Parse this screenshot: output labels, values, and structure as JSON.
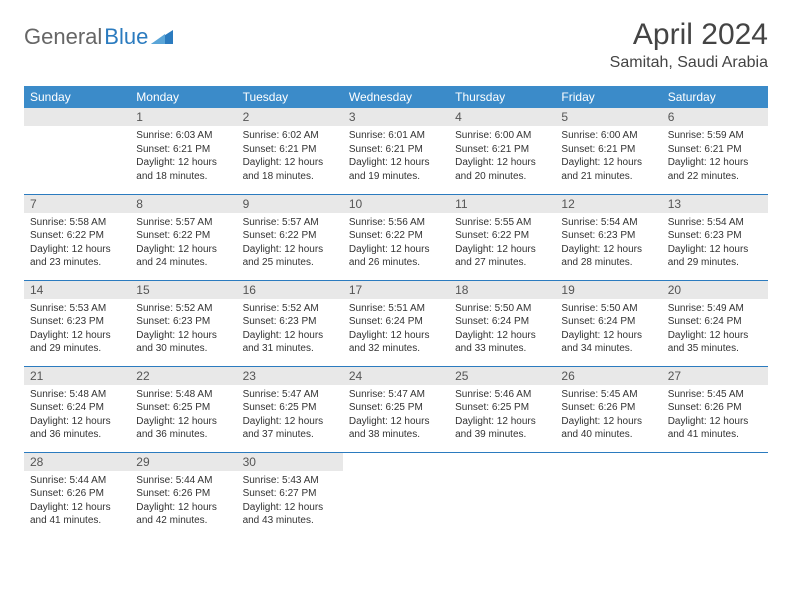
{
  "logo": {
    "text1": "General",
    "text2": "Blue",
    "triangle_color": "#2b7bbf"
  },
  "title": "April 2024",
  "location": "Samitah, Saudi Arabia",
  "header_bg": "#3b8bc9",
  "daynum_bg": "#e8e8e8",
  "border_color": "#2b7bbf",
  "weekdays": [
    "Sunday",
    "Monday",
    "Tuesday",
    "Wednesday",
    "Thursday",
    "Friday",
    "Saturday"
  ],
  "rows": [
    [
      null,
      {
        "n": "1",
        "sr": "6:03 AM",
        "ss": "6:21 PM",
        "dl": "12 hours and 18 minutes."
      },
      {
        "n": "2",
        "sr": "6:02 AM",
        "ss": "6:21 PM",
        "dl": "12 hours and 18 minutes."
      },
      {
        "n": "3",
        "sr": "6:01 AM",
        "ss": "6:21 PM",
        "dl": "12 hours and 19 minutes."
      },
      {
        "n": "4",
        "sr": "6:00 AM",
        "ss": "6:21 PM",
        "dl": "12 hours and 20 minutes."
      },
      {
        "n": "5",
        "sr": "6:00 AM",
        "ss": "6:21 PM",
        "dl": "12 hours and 21 minutes."
      },
      {
        "n": "6",
        "sr": "5:59 AM",
        "ss": "6:21 PM",
        "dl": "12 hours and 22 minutes."
      }
    ],
    [
      {
        "n": "7",
        "sr": "5:58 AM",
        "ss": "6:22 PM",
        "dl": "12 hours and 23 minutes."
      },
      {
        "n": "8",
        "sr": "5:57 AM",
        "ss": "6:22 PM",
        "dl": "12 hours and 24 minutes."
      },
      {
        "n": "9",
        "sr": "5:57 AM",
        "ss": "6:22 PM",
        "dl": "12 hours and 25 minutes."
      },
      {
        "n": "10",
        "sr": "5:56 AM",
        "ss": "6:22 PM",
        "dl": "12 hours and 26 minutes."
      },
      {
        "n": "11",
        "sr": "5:55 AM",
        "ss": "6:22 PM",
        "dl": "12 hours and 27 minutes."
      },
      {
        "n": "12",
        "sr": "5:54 AM",
        "ss": "6:23 PM",
        "dl": "12 hours and 28 minutes."
      },
      {
        "n": "13",
        "sr": "5:54 AM",
        "ss": "6:23 PM",
        "dl": "12 hours and 29 minutes."
      }
    ],
    [
      {
        "n": "14",
        "sr": "5:53 AM",
        "ss": "6:23 PM",
        "dl": "12 hours and 29 minutes."
      },
      {
        "n": "15",
        "sr": "5:52 AM",
        "ss": "6:23 PM",
        "dl": "12 hours and 30 minutes."
      },
      {
        "n": "16",
        "sr": "5:52 AM",
        "ss": "6:23 PM",
        "dl": "12 hours and 31 minutes."
      },
      {
        "n": "17",
        "sr": "5:51 AM",
        "ss": "6:24 PM",
        "dl": "12 hours and 32 minutes."
      },
      {
        "n": "18",
        "sr": "5:50 AM",
        "ss": "6:24 PM",
        "dl": "12 hours and 33 minutes."
      },
      {
        "n": "19",
        "sr": "5:50 AM",
        "ss": "6:24 PM",
        "dl": "12 hours and 34 minutes."
      },
      {
        "n": "20",
        "sr": "5:49 AM",
        "ss": "6:24 PM",
        "dl": "12 hours and 35 minutes."
      }
    ],
    [
      {
        "n": "21",
        "sr": "5:48 AM",
        "ss": "6:24 PM",
        "dl": "12 hours and 36 minutes."
      },
      {
        "n": "22",
        "sr": "5:48 AM",
        "ss": "6:25 PM",
        "dl": "12 hours and 36 minutes."
      },
      {
        "n": "23",
        "sr": "5:47 AM",
        "ss": "6:25 PM",
        "dl": "12 hours and 37 minutes."
      },
      {
        "n": "24",
        "sr": "5:47 AM",
        "ss": "6:25 PM",
        "dl": "12 hours and 38 minutes."
      },
      {
        "n": "25",
        "sr": "5:46 AM",
        "ss": "6:25 PM",
        "dl": "12 hours and 39 minutes."
      },
      {
        "n": "26",
        "sr": "5:45 AM",
        "ss": "6:26 PM",
        "dl": "12 hours and 40 minutes."
      },
      {
        "n": "27",
        "sr": "5:45 AM",
        "ss": "6:26 PM",
        "dl": "12 hours and 41 minutes."
      }
    ],
    [
      {
        "n": "28",
        "sr": "5:44 AM",
        "ss": "6:26 PM",
        "dl": "12 hours and 41 minutes."
      },
      {
        "n": "29",
        "sr": "5:44 AM",
        "ss": "6:26 PM",
        "dl": "12 hours and 42 minutes."
      },
      {
        "n": "30",
        "sr": "5:43 AM",
        "ss": "6:27 PM",
        "dl": "12 hours and 43 minutes."
      },
      null,
      null,
      null,
      null
    ]
  ],
  "labels": {
    "sunrise": "Sunrise:",
    "sunset": "Sunset:",
    "daylight": "Daylight:"
  }
}
